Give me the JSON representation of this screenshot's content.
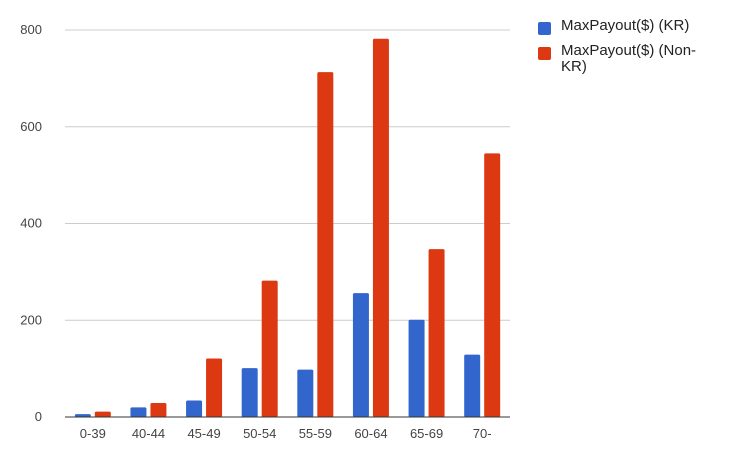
{
  "chart_data": {
    "type": "bar",
    "title": "",
    "xlabel": "",
    "ylabel": "",
    "categories": [
      "0-39",
      "40-44",
      "45-49",
      "50-54",
      "55-59",
      "60-64",
      "65-69",
      "70-"
    ],
    "series": [
      {
        "name": "MaxPayout($) (KR)",
        "color": "#3366cc",
        "values": [
          6,
          20,
          34,
          101,
          98,
          256,
          201,
          129
        ]
      },
      {
        "name": "MaxPayout($) (Non-KR)",
        "color": "#dc3912",
        "values": [
          11,
          29,
          121,
          282,
          713,
          782,
          347,
          545
        ]
      }
    ],
    "ylim": [
      0,
      800
    ],
    "yticks": [
      0,
      200,
      400,
      600,
      800
    ],
    "grid": true,
    "legend_position": "right"
  }
}
